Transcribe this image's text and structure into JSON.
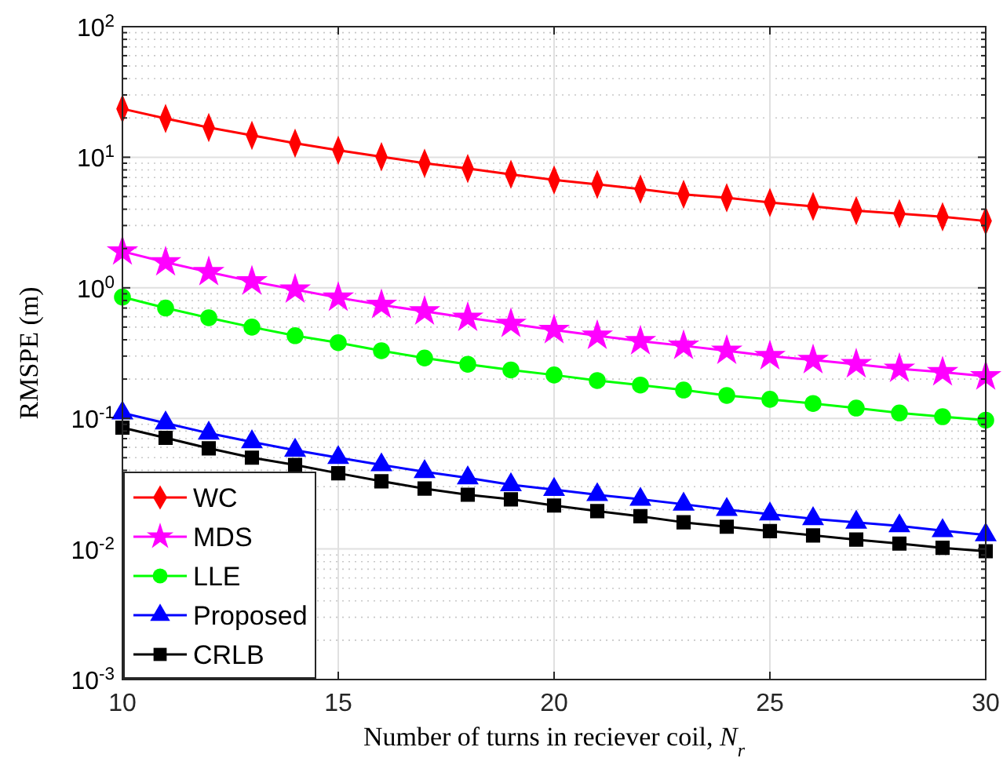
{
  "chart_data": {
    "type": "line",
    "xlabel": "Number of turns in reciever coil, N$_{r}$",
    "ylabel": "RMSPE (m)",
    "log": "y",
    "grid": true,
    "legend": "bottom left",
    "line_style": "solid",
    "x": [
      10,
      11,
      12,
      13,
      14,
      15,
      16,
      17,
      18,
      19,
      20,
      21,
      22,
      23,
      24,
      25,
      26,
      27,
      28,
      29,
      30
    ],
    "xlim": [
      10,
      30
    ],
    "xticks": [
      10,
      15,
      20,
      25,
      30
    ],
    "ylim": [
      0.001,
      100
    ],
    "yticks": [
      {
        "value": 0.001,
        "label": "10$^{-3}$"
      },
      {
        "value": 0.01,
        "label": "10$^{-2}$"
      },
      {
        "value": 0.1,
        "label": "10$^{-1}$"
      },
      {
        "value": 1,
        "label": "10$^{0}$"
      },
      {
        "value": 10,
        "label": "10$^{1}$"
      },
      {
        "value": 100,
        "label": "10$^{2}$"
      }
    ],
    "series": [
      {
        "name": "WC",
        "color": "#ff0000",
        "marker": "diamond",
        "values": [
          23.5,
          19.8,
          16.9,
          14.7,
          12.8,
          11.3,
          10.1,
          9.0,
          8.2,
          7.4,
          6.7,
          6.2,
          5.7,
          5.2,
          4.9,
          4.5,
          4.2,
          3.9,
          3.7,
          3.5,
          3.25
        ]
      },
      {
        "name": "MDS",
        "color": "#ff00ff",
        "marker": "star",
        "values": [
          1.9,
          1.57,
          1.32,
          1.12,
          0.97,
          0.84,
          0.74,
          0.66,
          0.59,
          0.53,
          0.475,
          0.43,
          0.39,
          0.36,
          0.33,
          0.3,
          0.28,
          0.26,
          0.24,
          0.226,
          0.21
        ]
      },
      {
        "name": "LLE",
        "color": "#00ff00",
        "marker": "circle",
        "values": [
          0.85,
          0.7,
          0.59,
          0.5,
          0.43,
          0.38,
          0.33,
          0.29,
          0.26,
          0.235,
          0.215,
          0.195,
          0.18,
          0.165,
          0.15,
          0.14,
          0.13,
          0.12,
          0.11,
          0.103,
          0.097
        ]
      },
      {
        "name": "Proposed",
        "color": "#0000ff",
        "marker": "triangle",
        "values": [
          0.11,
          0.092,
          0.077,
          0.066,
          0.057,
          0.05,
          0.044,
          0.039,
          0.035,
          0.031,
          0.0285,
          0.026,
          0.024,
          0.022,
          0.02,
          0.0185,
          0.017,
          0.016,
          0.015,
          0.0138,
          0.0128
        ]
      },
      {
        "name": "CRLB",
        "color": "#000000",
        "marker": "square",
        "values": [
          0.085,
          0.071,
          0.059,
          0.05,
          0.044,
          0.038,
          0.033,
          0.029,
          0.026,
          0.024,
          0.0215,
          0.0195,
          0.0178,
          0.016,
          0.0148,
          0.0137,
          0.0127,
          0.0118,
          0.011,
          0.0102,
          0.0096
        ]
      }
    ]
  }
}
